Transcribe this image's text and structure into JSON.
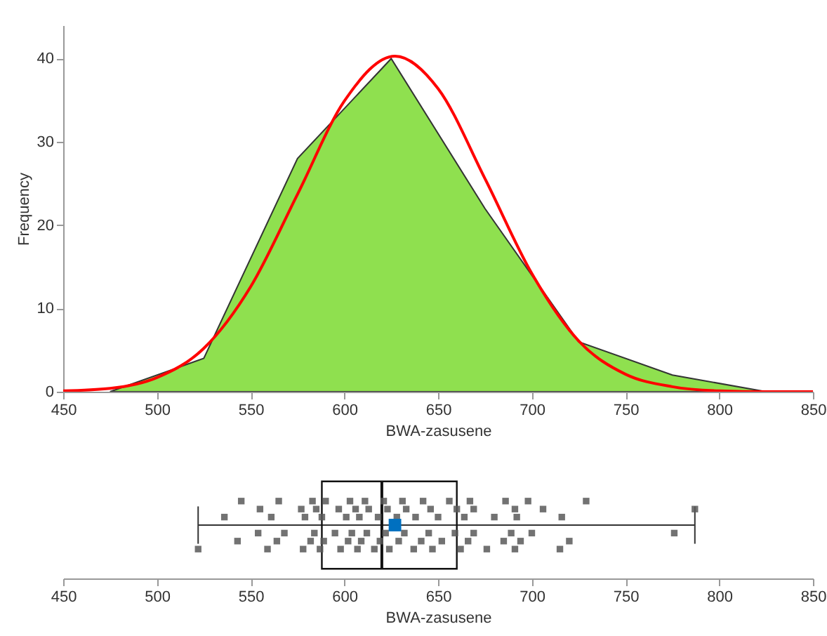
{
  "chart_data": [
    {
      "type": "area",
      "xlabel": "BWA-zasusene",
      "ylabel": "Frequency",
      "xlim": [
        450,
        850
      ],
      "xticks": [
        450,
        500,
        550,
        600,
        650,
        700,
        750,
        800,
        850
      ],
      "ylim": [
        0,
        44
      ],
      "yticks": [
        0,
        10,
        20,
        30,
        40
      ],
      "series": [
        {
          "type": "area",
          "color": "#8fe04f",
          "x": [
            475,
            525,
            575,
            625,
            675,
            725,
            775,
            825
          ],
          "values": [
            0,
            4,
            28,
            40,
            22,
            6,
            2,
            0
          ]
        },
        {
          "type": "line",
          "color": "#ff0000",
          "x": [
            450,
            475,
            500,
            525,
            550,
            575,
            600,
            627,
            650,
            675,
            700,
            725,
            750,
            775,
            800,
            825,
            850
          ],
          "values": [
            0.1,
            0.4,
            1.7,
            5.2,
            12.6,
            23.7,
            34.9,
            40.3,
            36.4,
            25.6,
            14.2,
            6.1,
            2.1,
            0.6,
            0.1,
            0,
            0
          ]
        }
      ]
    },
    {
      "type": "box",
      "orientation": "horizontal",
      "xlabel": "BWA-zasusene",
      "xlim": [
        450,
        850
      ],
      "xticks": [
        450,
        500,
        550,
        600,
        650,
        700,
        750,
        800,
        850
      ],
      "tick_labels": "x",
      "categories": [
        null
      ],
      "boxes": [
        {
          "low": 522,
          "q1": 588,
          "median": 620,
          "q3": 660,
          "high": 787,
          "mean": 627
        }
      ],
      "series": [
        {
          "type": "scatter",
          "color": "#595959",
          "x": [
            null,
            null,
            null,
            null,
            null,
            null,
            null,
            null,
            null,
            null,
            null,
            null,
            null,
            null,
            null,
            null,
            null,
            null,
            null,
            null,
            null,
            null,
            null,
            null,
            null,
            null,
            null,
            null,
            null,
            null,
            null,
            null,
            null,
            null,
            null,
            null,
            null,
            null,
            null,
            null,
            null,
            null,
            null,
            null,
            null,
            null,
            null,
            null,
            null,
            null,
            null,
            null,
            null,
            null,
            null,
            null,
            null,
            null,
            null,
            null,
            null,
            null,
            null,
            null,
            null,
            null,
            null,
            null,
            null,
            null,
            null,
            null,
            null,
            null,
            null,
            null,
            null,
            null,
            null,
            null,
            null,
            null,
            null,
            null
          ],
          "values": [
            522,
            536,
            543,
            545,
            554,
            555,
            559,
            561,
            564,
            565,
            568,
            577,
            578,
            579,
            582,
            583,
            584,
            585,
            587,
            588,
            589,
            590,
            595,
            597,
            598,
            601,
            602,
            603,
            604,
            606,
            607,
            608,
            609,
            611,
            612,
            613,
            616,
            618,
            619,
            621,
            622,
            623,
            624,
            628,
            629,
            631,
            632,
            633,
            637,
            638,
            641,
            642,
            645,
            646,
            647,
            650,
            652,
            656,
            659,
            660,
            662,
            664,
            666,
            667,
            669,
            669,
            676,
            680,
            685,
            686,
            689,
            691,
            691,
            692,
            694,
            698,
            700,
            706,
            715,
            716,
            720,
            729,
            776,
            787
          ]
        }
      ]
    }
  ]
}
